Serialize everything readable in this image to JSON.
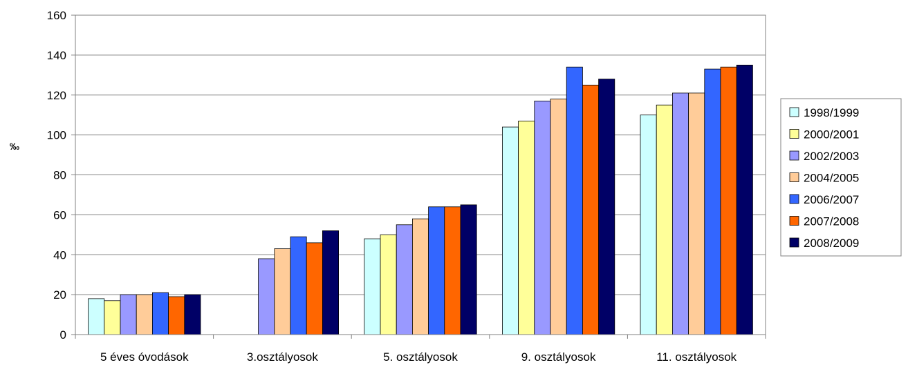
{
  "chart_data": {
    "type": "bar",
    "title": "",
    "xlabel": "",
    "ylabel": "‰",
    "ylim": [
      0,
      160
    ],
    "yticks": [
      0,
      20,
      40,
      60,
      80,
      100,
      120,
      140,
      160
    ],
    "grid": true,
    "legend_position": "right",
    "categories": [
      "5 éves óvodások",
      "3.osztályosok",
      "5. osztályosok",
      "9. osztályosok",
      "11. osztályosok"
    ],
    "series": [
      {
        "name": "1998/1999",
        "color": "#ccffff",
        "values": [
          18,
          null,
          48,
          104,
          110
        ]
      },
      {
        "name": "2000/2001",
        "color": "#ffff99",
        "values": [
          17,
          null,
          50,
          107,
          115
        ]
      },
      {
        "name": "2002/2003",
        "color": "#9999ff",
        "values": [
          20,
          38,
          55,
          117,
          121
        ]
      },
      {
        "name": "2004/2005",
        "color": "#ffcc99",
        "values": [
          20,
          43,
          58,
          118,
          121
        ]
      },
      {
        "name": "2006/2007",
        "color": "#3366ff",
        "values": [
          21,
          49,
          64,
          134,
          133
        ]
      },
      {
        "name": "2007/2008",
        "color": "#ff6600",
        "values": [
          19,
          46,
          64,
          125,
          134
        ]
      },
      {
        "name": "2008/2009",
        "color": "#000066",
        "values": [
          20,
          52,
          65,
          128,
          135
        ]
      }
    ]
  }
}
